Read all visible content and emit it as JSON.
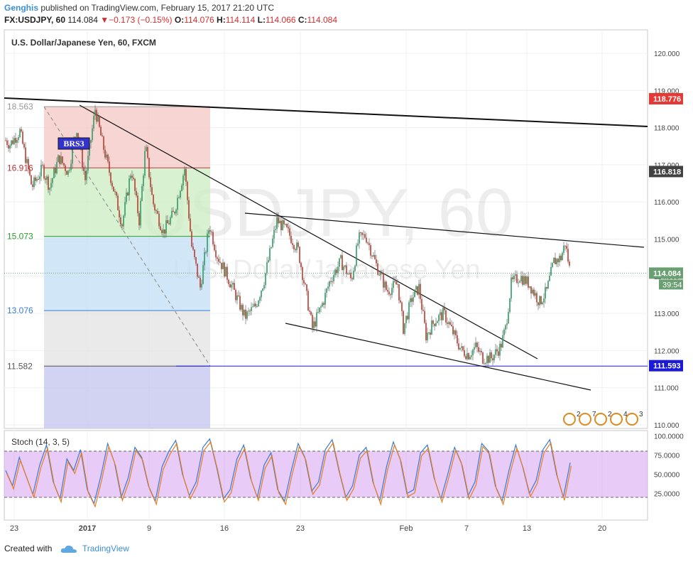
{
  "header": {
    "user": "Genghis",
    "published": "published on TradingView.com, February 15, 2017 21:20 UTC",
    "symbol": "FX:USDJPY, 60",
    "last": "114.084",
    "change": "▼−0.173 (−0.15%)",
    "o_label": "O:",
    "o": "114.076",
    "h_label": "H:",
    "h": "114.114",
    "l_label": "L:",
    "l": "114.066",
    "c_label": "C:",
    "c": "114.084"
  },
  "footer": {
    "created_with": "Created with",
    "brand": "TradingView"
  },
  "chart_data": [
    {
      "type": "candlestick",
      "title": "U.S. Dollar/Japanese Yen, 60, FXCM",
      "watermark_line1": "USDJPY, 60",
      "watermark_line2": "U.S. Dollar/Japanese Yen",
      "y_ticks": [
        "110.000",
        "111.000",
        "112.000",
        "113.000",
        "114.000",
        "115.000",
        "116.000",
        "117.000",
        "118.000",
        "119.000",
        "120.000"
      ],
      "ylim": [
        109.95,
        120.85
      ],
      "x_ticks": [
        "23",
        "2017",
        "9",
        "16",
        "23",
        "Feb",
        "7",
        "13",
        "20"
      ],
      "price_tags": [
        {
          "value": 118.776,
          "label": "118.776",
          "color": "#e53935"
        },
        {
          "value": 116.818,
          "label": "116.818",
          "color": "#424242"
        },
        {
          "value": 114.084,
          "label": "114.084",
          "color": "#6a9f72"
        },
        {
          "value": 111.593,
          "label": "111.593",
          "color": "#1a1ad8"
        }
      ],
      "countdown": "39:54",
      "fib_levels": [
        {
          "label": "18.563",
          "price": 118.563
        },
        {
          "label": "16.916",
          "price": 116.916
        },
        {
          "label": "15.073",
          "price": 115.073
        },
        {
          "label": "13.076",
          "price": 113.076
        },
        {
          "label": "11.582",
          "price": 111.582
        }
      ],
      "annotation": "BRS3",
      "event_icons": [
        "2",
        "7",
        "2",
        "4",
        "3"
      ],
      "path": [
        [
          0,
          117.8
        ],
        [
          14,
          117.55
        ],
        [
          28,
          117.9
        ],
        [
          45,
          116.4
        ],
        [
          60,
          116.9
        ],
        [
          70,
          116.4
        ],
        [
          83,
          117.2
        ],
        [
          96,
          116.8
        ],
        [
          108,
          118.0
        ],
        [
          120,
          116.6
        ],
        [
          134,
          118.5
        ],
        [
          144,
          117.6
        ],
        [
          158,
          116.5
        ],
        [
          172,
          115.4
        ],
        [
          185,
          116.9
        ],
        [
          196,
          115.5
        ],
        [
          205,
          117.5
        ],
        [
          215,
          116.0
        ],
        [
          230,
          115.2
        ],
        [
          245,
          115.7
        ],
        [
          260,
          116.9
        ],
        [
          270,
          114.8
        ],
        [
          282,
          113.7
        ],
        [
          295,
          115.4
        ],
        [
          305,
          114.6
        ],
        [
          325,
          113.8
        ],
        [
          345,
          112.9
        ],
        [
          360,
          113.2
        ],
        [
          372,
          113.9
        ],
        [
          390,
          115.5
        ],
        [
          405,
          115.2
        ],
        [
          420,
          114.7
        ],
        [
          440,
          112.6
        ],
        [
          455,
          113.3
        ],
        [
          465,
          113.9
        ],
        [
          480,
          114.4
        ],
        [
          495,
          113.9
        ],
        [
          505,
          115.0
        ],
        [
          515,
          115.1
        ],
        [
          530,
          114.3
        ],
        [
          545,
          113.6
        ],
        [
          560,
          113.8
        ],
        [
          568,
          112.6
        ],
        [
          580,
          113.4
        ],
        [
          590,
          113.7
        ],
        [
          600,
          112.4
        ],
        [
          612,
          112.8
        ],
        [
          625,
          113.0
        ],
        [
          640,
          112.4
        ],
        [
          650,
          112.0
        ],
        [
          660,
          111.9
        ],
        [
          670,
          112.1
        ],
        [
          680,
          111.8
        ],
        [
          692,
          111.8
        ],
        [
          705,
          112.1
        ],
        [
          712,
          112.6
        ],
        [
          720,
          113.8
        ],
        [
          732,
          114.0
        ],
        [
          745,
          113.8
        ],
        [
          760,
          113.3
        ],
        [
          770,
          113.6
        ],
        [
          780,
          114.4
        ],
        [
          790,
          114.5
        ],
        [
          796,
          114.9
        ],
        [
          803,
          114.1
        ]
      ]
    },
    {
      "type": "line",
      "title": "Stoch (14, 3, 5)",
      "y_ticks": [
        "25.0000",
        "50.0000",
        "75.0000",
        "100.0000"
      ],
      "ylim": [
        0,
        105
      ],
      "bands": [
        20,
        80
      ],
      "series": [
        {
          "color": "#3a7bd5"
        },
        {
          "color": "#e67e22"
        }
      ],
      "values": [
        55,
        35,
        72,
        48,
        24,
        62,
        88,
        40,
        18,
        70,
        55,
        82,
        30,
        12,
        48,
        90,
        65,
        20,
        45,
        85,
        72,
        35,
        15,
        60,
        80,
        94,
        50,
        22,
        40,
        85,
        96,
        60,
        18,
        30,
        70,
        88,
        45,
        20,
        62,
        78,
        30,
        15,
        55,
        90,
        72,
        28,
        40,
        82,
        95,
        55,
        20,
        35,
        75,
        85,
        40,
        15,
        60,
        92,
        70,
        25,
        30,
        78,
        88,
        45,
        18,
        50,
        85,
        65,
        22,
        40,
        90,
        80,
        35,
        15,
        55,
        88,
        60,
        25,
        42,
        82,
        95,
        50,
        20,
        65
      ]
    }
  ]
}
